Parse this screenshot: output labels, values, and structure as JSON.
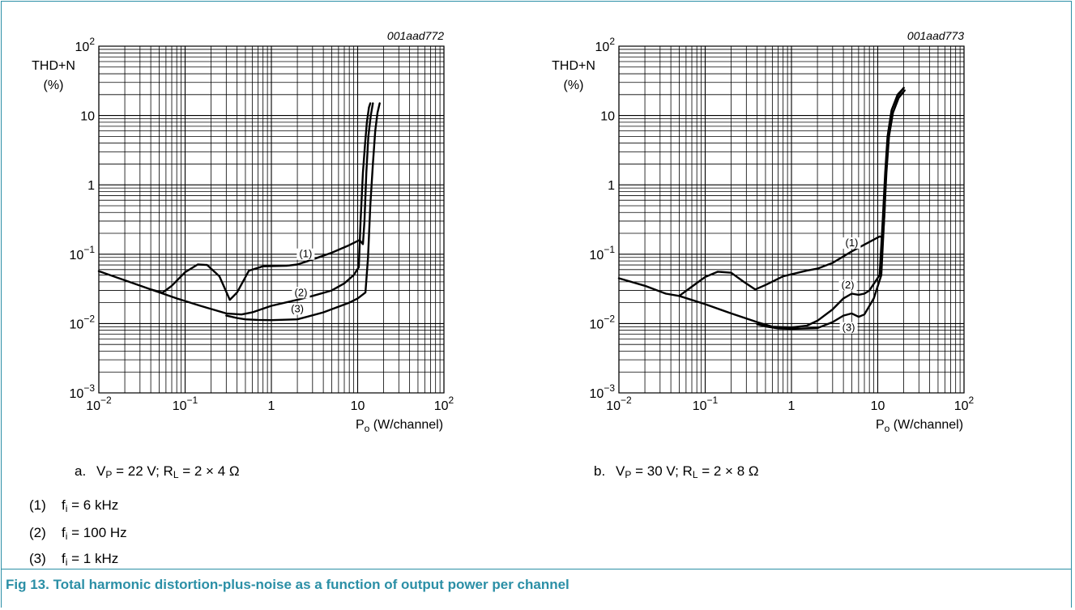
{
  "figure": {
    "title": "Fig 13.  Total harmonic distortion-plus-noise as a function of output power per channel",
    "legend": [
      {
        "num": "(1)",
        "sym": "f",
        "sub": "i",
        "rest": " = 6 kHz"
      },
      {
        "num": "(2)",
        "sym": "f",
        "sub": "i",
        "rest": " = 100 Hz"
      },
      {
        "num": "(3)",
        "sym": "f",
        "sub": "i",
        "rest": " = 1 kHz"
      }
    ]
  },
  "chart_data": [
    {
      "type": "line",
      "id": "001aad772",
      "caption": {
        "letter": "a.",
        "text": "V_P = 22 V; R_L = 2 × 4 Ω"
      },
      "ylabel_line1": "THD+N",
      "ylabel_line2": "(%)",
      "xlabel": "P_o (W/channel)",
      "xscale": "log",
      "yscale": "log",
      "xlim": [
        0.01,
        100
      ],
      "ylim": [
        0.001,
        100
      ],
      "x_ticks": [
        "10^-2",
        "10^-1",
        "1",
        "10",
        "10^2"
      ],
      "y_ticks": [
        "10^-3",
        "10^-2",
        "10^-1",
        "1",
        "10",
        "10^2"
      ],
      "grid": true,
      "series": [
        {
          "name": "(1)",
          "label_at": [
            2.5,
            0.09
          ],
          "points": [
            [
              0.01,
              0.057
            ],
            [
              0.02,
              0.042
            ],
            [
              0.04,
              0.031
            ],
            [
              0.055,
              0.028
            ],
            [
              0.07,
              0.035
            ],
            [
              0.1,
              0.055
            ],
            [
              0.14,
              0.071
            ],
            [
              0.18,
              0.07
            ],
            [
              0.25,
              0.048
            ],
            [
              0.33,
              0.022
            ],
            [
              0.4,
              0.028
            ],
            [
              0.55,
              0.058
            ],
            [
              0.8,
              0.067
            ],
            [
              1.5,
              0.068
            ],
            [
              2,
              0.071
            ],
            [
              3,
              0.084
            ],
            [
              5,
              0.105
            ],
            [
              8,
              0.135
            ],
            [
              10.5,
              0.16
            ],
            [
              11.5,
              0.14
            ],
            [
              12,
              0.3
            ],
            [
              12.6,
              1.5
            ],
            [
              13.3,
              5
            ],
            [
              14.2,
              10
            ],
            [
              15,
              15
            ]
          ]
        },
        {
          "name": "(2)",
          "label_at": [
            2.2,
            0.025
          ],
          "points": [
            [
              0.04,
              0.031
            ],
            [
              0.08,
              0.023
            ],
            [
              0.15,
              0.018
            ],
            [
              0.3,
              0.014
            ],
            [
              0.45,
              0.0135
            ],
            [
              0.6,
              0.0145
            ],
            [
              1,
              0.018
            ],
            [
              2,
              0.022
            ],
            [
              3,
              0.025
            ],
            [
              5,
              0.03
            ],
            [
              7,
              0.038
            ],
            [
              9,
              0.05
            ],
            [
              10.3,
              0.065
            ],
            [
              10.8,
              0.3
            ],
            [
              11.5,
              1.5
            ],
            [
              12.2,
              4
            ],
            [
              12.8,
              8
            ],
            [
              13.5,
              13
            ],
            [
              14,
              15
            ]
          ]
        },
        {
          "name": "(3)",
          "label_at": [
            2.0,
            0.0145
          ],
          "points": [
            [
              0.3,
              0.013
            ],
            [
              0.4,
              0.012
            ],
            [
              0.5,
              0.0115
            ],
            [
              0.7,
              0.0113
            ],
            [
              1,
              0.0112
            ],
            [
              2,
              0.0115
            ],
            [
              4,
              0.0145
            ],
            [
              8,
              0.02
            ],
            [
              10,
              0.023
            ],
            [
              12.3,
              0.028
            ],
            [
              13.2,
              0.09
            ],
            [
              14,
              0.5
            ],
            [
              15,
              2
            ],
            [
              16,
              6
            ],
            [
              17,
              11
            ],
            [
              18,
              15
            ]
          ]
        }
      ]
    },
    {
      "type": "line",
      "id": "001aad773",
      "caption": {
        "letter": "b.",
        "text": "V_P = 30 V; R_L = 2 × 8 Ω"
      },
      "ylabel_line1": "THD+N",
      "ylabel_line2": "(%)",
      "xlabel": "P_o (W/channel)",
      "xscale": "log",
      "yscale": "log",
      "xlim": [
        0.01,
        100
      ],
      "ylim": [
        0.001,
        100
      ],
      "x_ticks": [
        "10^-2",
        "10^-1",
        "1",
        "10",
        "10^2"
      ],
      "y_ticks": [
        "10^-3",
        "10^-2",
        "10^-1",
        "1",
        "10",
        "10^2"
      ],
      "grid": true,
      "series": [
        {
          "name": "(1)",
          "label_at": [
            5.0,
            0.13
          ],
          "points": [
            [
              0.01,
              0.045
            ],
            [
              0.02,
              0.035
            ],
            [
              0.035,
              0.027
            ],
            [
              0.05,
              0.025
            ],
            [
              0.07,
              0.034
            ],
            [
              0.1,
              0.047
            ],
            [
              0.14,
              0.056
            ],
            [
              0.2,
              0.054
            ],
            [
              0.28,
              0.04
            ],
            [
              0.38,
              0.031
            ],
            [
              0.5,
              0.036
            ],
            [
              0.8,
              0.048
            ],
            [
              1.5,
              0.058
            ],
            [
              2,
              0.062
            ],
            [
              3,
              0.075
            ],
            [
              5,
              0.11
            ],
            [
              8,
              0.15
            ],
            [
              10.5,
              0.18
            ],
            [
              11.5,
              0.175
            ],
            [
              12,
              0.4
            ],
            [
              12.5,
              2
            ],
            [
              13.3,
              6
            ],
            [
              14.5,
              12
            ],
            [
              17,
              20
            ],
            [
              20,
              25
            ]
          ]
        },
        {
          "name": "(2)",
          "label_at": [
            4.5,
            0.032
          ],
          "points": [
            [
              0.05,
              0.025
            ],
            [
              0.1,
              0.019
            ],
            [
              0.2,
              0.014
            ],
            [
              0.4,
              0.0105
            ],
            [
              0.6,
              0.009
            ],
            [
              1,
              0.0088
            ],
            [
              1.5,
              0.0093
            ],
            [
              2,
              0.011
            ],
            [
              3,
              0.016
            ],
            [
              4,
              0.023
            ],
            [
              5,
              0.027
            ],
            [
              6,
              0.026
            ],
            [
              7,
              0.027
            ],
            [
              8,
              0.03
            ],
            [
              10.5,
              0.05
            ],
            [
              11.4,
              0.3
            ],
            [
              12.2,
              1.5
            ],
            [
              13,
              5
            ],
            [
              14.5,
              12
            ],
            [
              17,
              19
            ],
            [
              20,
              25
            ]
          ]
        },
        {
          "name": "(3)",
          "label_at": [
            4.6,
            0.0078
          ],
          "points": [
            [
              0.4,
              0.0098
            ],
            [
              0.5,
              0.0091
            ],
            [
              0.7,
              0.0085
            ],
            [
              1,
              0.0084
            ],
            [
              2,
              0.0086
            ],
            [
              3,
              0.0105
            ],
            [
              4,
              0.013
            ],
            [
              5,
              0.014
            ],
            [
              6,
              0.0125
            ],
            [
              7,
              0.0135
            ],
            [
              9,
              0.023
            ],
            [
              11,
              0.05
            ],
            [
              11.8,
              0.3
            ],
            [
              12.6,
              1.5
            ],
            [
              13.5,
              5
            ],
            [
              15,
              11
            ],
            [
              17.5,
              18
            ],
            [
              20.5,
              23
            ]
          ]
        }
      ]
    }
  ]
}
